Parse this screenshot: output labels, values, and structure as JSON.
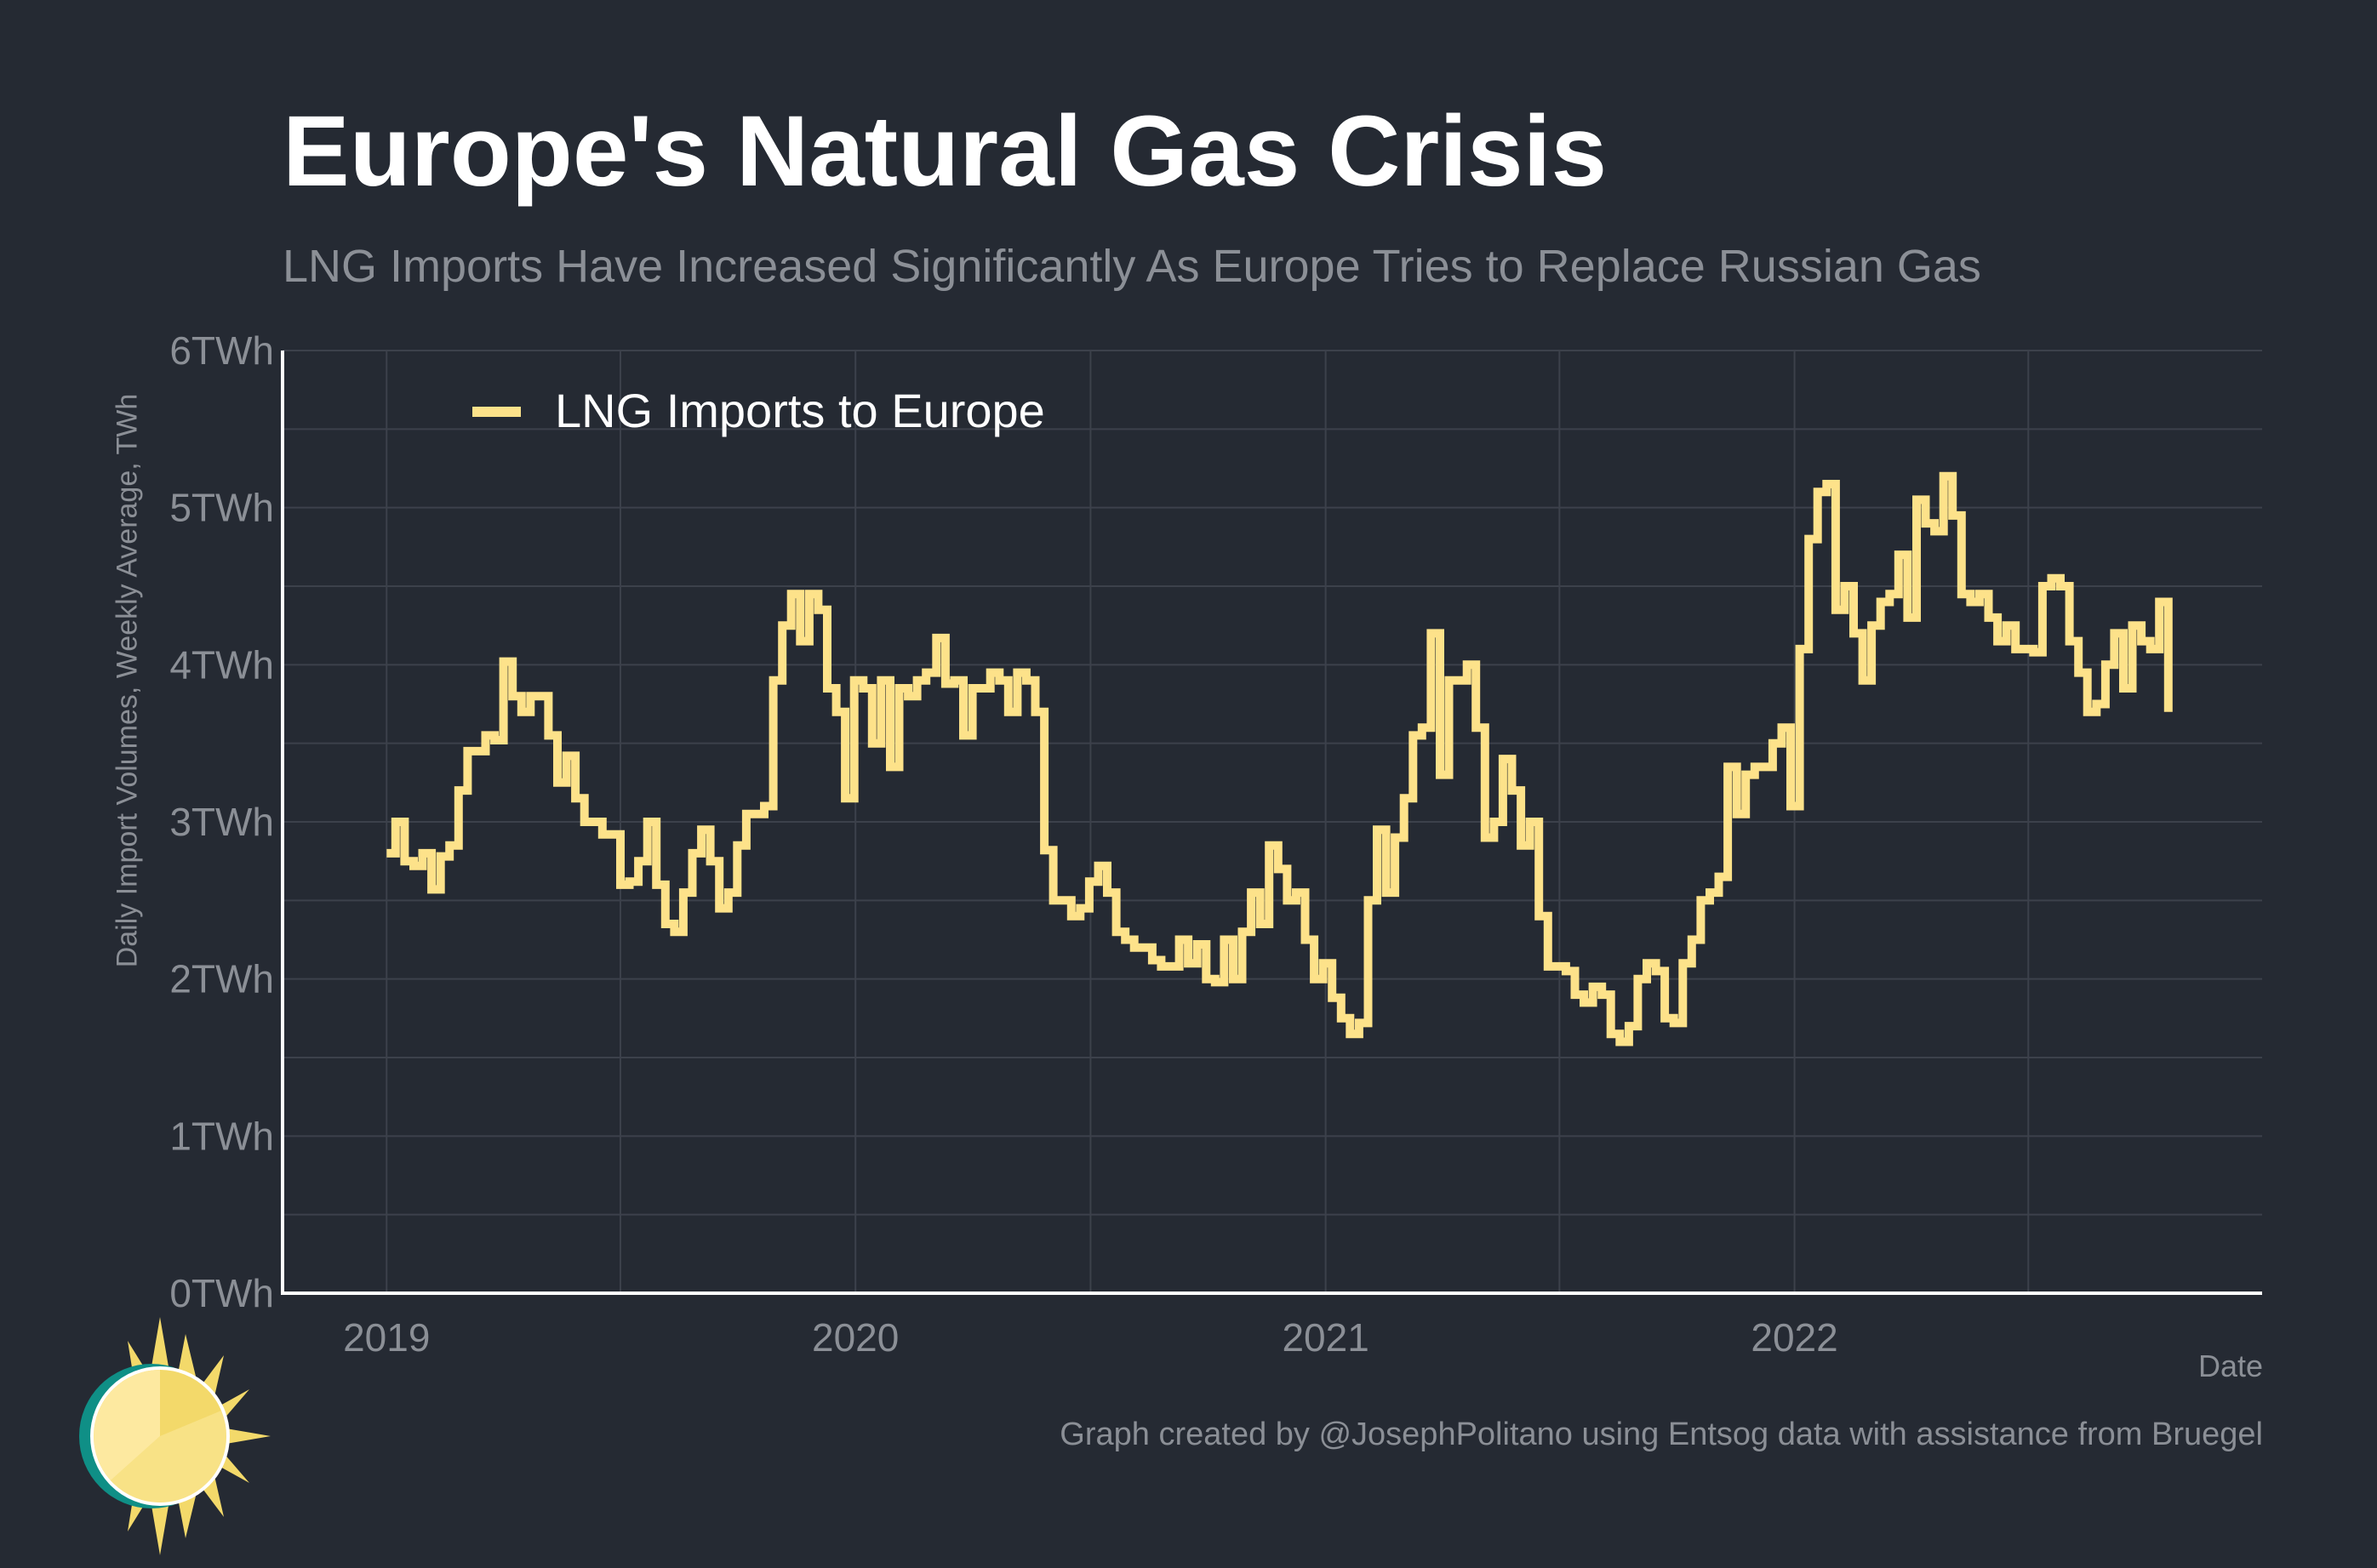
{
  "title": "Europe's Natural Gas Crisis",
  "subtitle": "LNG Imports Have Increased Significantly As Europe Tries to Replace Russian Gas",
  "caption": "Graph created by @JosephPolitano using Entsog data with assistance from Bruegel",
  "colors": {
    "background": "#252a33",
    "line": "#fde28a",
    "grid": "#3c414b",
    "text_muted": "#8b8f96",
    "axis": "#ffffff"
  },
  "chart_data": {
    "type": "line",
    "title": "Europe's Natural Gas Crisis",
    "subtitle": "LNG Imports Have Increased Significantly As Europe Tries to Replace Russian Gas",
    "xlabel": "Date",
    "ylabel": "Daily Import Volumes, Weekly Average, TWh",
    "ylim": [
      0,
      6
    ],
    "xlim": [
      "2018-10-12",
      "2022-12-31"
    ],
    "y_ticks": [
      "0TWh",
      "1TWh",
      "2TWh",
      "3TWh",
      "4TWh",
      "5TWh",
      "6TWh"
    ],
    "x_ticks": [
      "2019",
      "2020",
      "2021",
      "2022"
    ],
    "grid": true,
    "legend_position": "top-left",
    "series": [
      {
        "name": "LNG Imports to Europe",
        "color": "#fde28a",
        "step": true,
        "points": [
          [
            "2019-01-01",
            2.8
          ],
          [
            "2019-01-08",
            3.0
          ],
          [
            "2019-01-15",
            2.75
          ],
          [
            "2019-01-22",
            2.72
          ],
          [
            "2019-01-29",
            2.8
          ],
          [
            "2019-02-05",
            2.57
          ],
          [
            "2019-02-12",
            2.78
          ],
          [
            "2019-02-19",
            2.85
          ],
          [
            "2019-02-26",
            3.2
          ],
          [
            "2019-03-05",
            3.45
          ],
          [
            "2019-03-12",
            3.45
          ],
          [
            "2019-03-19",
            3.55
          ],
          [
            "2019-03-26",
            3.52
          ],
          [
            "2019-04-02",
            4.02
          ],
          [
            "2019-04-09",
            3.8
          ],
          [
            "2019-04-16",
            3.7
          ],
          [
            "2019-04-23",
            3.8
          ],
          [
            "2019-04-30",
            3.8
          ],
          [
            "2019-05-07",
            3.55
          ],
          [
            "2019-05-14",
            3.25
          ],
          [
            "2019-05-21",
            3.42
          ],
          [
            "2019-05-28",
            3.15
          ],
          [
            "2019-06-04",
            3.0
          ],
          [
            "2019-06-11",
            3.0
          ],
          [
            "2019-06-18",
            2.92
          ],
          [
            "2019-06-25",
            2.92
          ],
          [
            "2019-07-02",
            2.6
          ],
          [
            "2019-07-09",
            2.62
          ],
          [
            "2019-07-16",
            2.75
          ],
          [
            "2019-07-23",
            3.0
          ],
          [
            "2019-07-30",
            2.6
          ],
          [
            "2019-08-06",
            2.35
          ],
          [
            "2019-08-13",
            2.3
          ],
          [
            "2019-08-20",
            2.55
          ],
          [
            "2019-08-27",
            2.8
          ],
          [
            "2019-09-03",
            2.95
          ],
          [
            "2019-09-10",
            2.75
          ],
          [
            "2019-09-17",
            2.45
          ],
          [
            "2019-09-24",
            2.55
          ],
          [
            "2019-10-01",
            2.85
          ],
          [
            "2019-10-08",
            3.05
          ],
          [
            "2019-10-15",
            3.05
          ],
          [
            "2019-10-22",
            3.1
          ],
          [
            "2019-10-29",
            3.9
          ],
          [
            "2019-11-05",
            4.25
          ],
          [
            "2019-11-12",
            4.45
          ],
          [
            "2019-11-19",
            4.15
          ],
          [
            "2019-11-26",
            4.45
          ],
          [
            "2019-12-03",
            4.35
          ],
          [
            "2019-12-10",
            3.85
          ],
          [
            "2019-12-17",
            3.7
          ],
          [
            "2019-12-24",
            3.15
          ],
          [
            "2019-12-31",
            3.9
          ],
          [
            "2020-01-07",
            3.85
          ],
          [
            "2020-01-14",
            3.5
          ],
          [
            "2020-01-21",
            3.9
          ],
          [
            "2020-01-28",
            3.35
          ],
          [
            "2020-02-04",
            3.85
          ],
          [
            "2020-02-11",
            3.8
          ],
          [
            "2020-02-18",
            3.9
          ],
          [
            "2020-02-25",
            3.95
          ],
          [
            "2020-03-04",
            4.17
          ],
          [
            "2020-03-11",
            3.88
          ],
          [
            "2020-03-18",
            3.9
          ],
          [
            "2020-03-25",
            3.55
          ],
          [
            "2020-04-01",
            3.85
          ],
          [
            "2020-04-08",
            3.85
          ],
          [
            "2020-04-15",
            3.95
          ],
          [
            "2020-04-22",
            3.9
          ],
          [
            "2020-04-29",
            3.7
          ],
          [
            "2020-05-06",
            3.95
          ],
          [
            "2020-05-13",
            3.9
          ],
          [
            "2020-05-20",
            3.7
          ],
          [
            "2020-05-27",
            2.82
          ],
          [
            "2020-06-03",
            2.5
          ],
          [
            "2020-06-10",
            2.5
          ],
          [
            "2020-06-17",
            2.4
          ],
          [
            "2020-06-24",
            2.45
          ],
          [
            "2020-07-01",
            2.62
          ],
          [
            "2020-07-08",
            2.72
          ],
          [
            "2020-07-15",
            2.55
          ],
          [
            "2020-07-22",
            2.3
          ],
          [
            "2020-07-29",
            2.25
          ],
          [
            "2020-08-05",
            2.2
          ],
          [
            "2020-08-12",
            2.2
          ],
          [
            "2020-08-19",
            2.12
          ],
          [
            "2020-08-26",
            2.08
          ],
          [
            "2020-09-02",
            2.08
          ],
          [
            "2020-09-09",
            2.25
          ],
          [
            "2020-09-16",
            2.1
          ],
          [
            "2020-09-23",
            2.22
          ],
          [
            "2020-09-30",
            2.0
          ],
          [
            "2020-10-07",
            1.98
          ],
          [
            "2020-10-14",
            2.25
          ],
          [
            "2020-10-21",
            2.0
          ],
          [
            "2020-10-28",
            2.3
          ],
          [
            "2020-11-04",
            2.55
          ],
          [
            "2020-11-11",
            2.35
          ],
          [
            "2020-11-18",
            2.85
          ],
          [
            "2020-11-25",
            2.7
          ],
          [
            "2020-12-02",
            2.5
          ],
          [
            "2020-12-09",
            2.55
          ],
          [
            "2020-12-16",
            2.25
          ],
          [
            "2020-12-23",
            2.0
          ],
          [
            "2020-12-30",
            2.1
          ],
          [
            "2021-01-06",
            1.88
          ],
          [
            "2021-01-13",
            1.75
          ],
          [
            "2021-01-20",
            1.65
          ],
          [
            "2021-01-27",
            1.72
          ],
          [
            "2021-02-03",
            2.5
          ],
          [
            "2021-02-10",
            2.95
          ],
          [
            "2021-02-17",
            2.55
          ],
          [
            "2021-02-24",
            2.9
          ],
          [
            "2021-03-03",
            3.15
          ],
          [
            "2021-03-10",
            3.55
          ],
          [
            "2021-03-17",
            3.6
          ],
          [
            "2021-03-24",
            4.2
          ],
          [
            "2021-03-31",
            3.3
          ],
          [
            "2021-04-07",
            3.9
          ],
          [
            "2021-04-14",
            3.9
          ],
          [
            "2021-04-21",
            4.0
          ],
          [
            "2021-04-28",
            3.6
          ],
          [
            "2021-05-05",
            2.9
          ],
          [
            "2021-05-12",
            3.0
          ],
          [
            "2021-05-19",
            3.4
          ],
          [
            "2021-05-26",
            3.2
          ],
          [
            "2021-06-02",
            2.85
          ],
          [
            "2021-06-09",
            3.0
          ],
          [
            "2021-06-16",
            2.4
          ],
          [
            "2021-06-23",
            2.08
          ],
          [
            "2021-06-30",
            2.08
          ],
          [
            "2021-07-07",
            2.05
          ],
          [
            "2021-07-14",
            1.9
          ],
          [
            "2021-07-21",
            1.85
          ],
          [
            "2021-07-28",
            1.95
          ],
          [
            "2021-08-04",
            1.9
          ],
          [
            "2021-08-11",
            1.65
          ],
          [
            "2021-08-18",
            1.6
          ],
          [
            "2021-08-25",
            1.7
          ],
          [
            "2021-09-01",
            2.0
          ],
          [
            "2021-09-08",
            2.1
          ],
          [
            "2021-09-15",
            2.05
          ],
          [
            "2021-09-22",
            1.75
          ],
          [
            "2021-09-29",
            1.72
          ],
          [
            "2021-10-06",
            2.1
          ],
          [
            "2021-10-13",
            2.25
          ],
          [
            "2021-10-20",
            2.5
          ],
          [
            "2021-10-27",
            2.55
          ],
          [
            "2021-11-03",
            2.65
          ],
          [
            "2021-11-10",
            3.35
          ],
          [
            "2021-11-17",
            3.05
          ],
          [
            "2021-11-24",
            3.3
          ],
          [
            "2021-12-01",
            3.35
          ],
          [
            "2021-12-08",
            3.35
          ],
          [
            "2021-12-15",
            3.5
          ],
          [
            "2021-12-22",
            3.6
          ],
          [
            "2021-12-29",
            3.1
          ],
          [
            "2022-01-05",
            4.1
          ],
          [
            "2022-01-12",
            4.8
          ],
          [
            "2022-01-19",
            5.1
          ],
          [
            "2022-01-26",
            5.15
          ],
          [
            "2022-02-02",
            4.35
          ],
          [
            "2022-02-09",
            4.5
          ],
          [
            "2022-02-16",
            4.2
          ],
          [
            "2022-02-23",
            3.9
          ],
          [
            "2022-03-02",
            4.25
          ],
          [
            "2022-03-09",
            4.4
          ],
          [
            "2022-03-16",
            4.45
          ],
          [
            "2022-03-23",
            4.7
          ],
          [
            "2022-03-30",
            4.3
          ],
          [
            "2022-04-06",
            5.05
          ],
          [
            "2022-04-13",
            4.9
          ],
          [
            "2022-04-20",
            4.85
          ],
          [
            "2022-04-27",
            5.2
          ],
          [
            "2022-05-04",
            4.95
          ],
          [
            "2022-05-11",
            4.45
          ],
          [
            "2022-05-18",
            4.4
          ],
          [
            "2022-05-25",
            4.45
          ],
          [
            "2022-06-01",
            4.3
          ],
          [
            "2022-06-08",
            4.15
          ],
          [
            "2022-06-15",
            4.25
          ],
          [
            "2022-06-22",
            4.1
          ],
          [
            "2022-06-29",
            4.1
          ],
          [
            "2022-07-06",
            4.08
          ],
          [
            "2022-07-13",
            4.5
          ],
          [
            "2022-07-20",
            4.55
          ],
          [
            "2022-07-27",
            4.5
          ],
          [
            "2022-08-03",
            4.15
          ],
          [
            "2022-08-10",
            3.95
          ],
          [
            "2022-08-17",
            3.7
          ],
          [
            "2022-08-24",
            3.75
          ],
          [
            "2022-08-31",
            4.0
          ],
          [
            "2022-09-07",
            4.2
          ],
          [
            "2022-09-14",
            3.85
          ],
          [
            "2022-09-21",
            4.25
          ],
          [
            "2022-09-28",
            4.15
          ],
          [
            "2022-10-05",
            4.1
          ],
          [
            "2022-10-12",
            4.4
          ],
          [
            "2022-10-19",
            3.7
          ]
        ]
      }
    ]
  }
}
